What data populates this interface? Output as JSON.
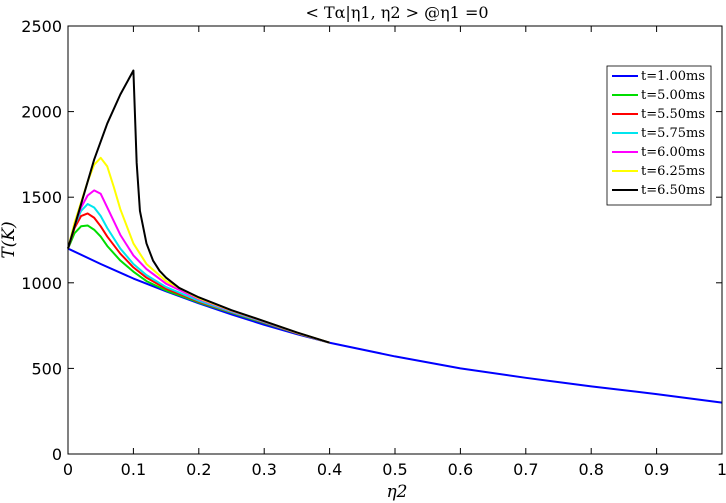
{
  "chart_data": {
    "type": "line",
    "title": "< Tα|η1, η2 > @η1 =0",
    "xlabel": "η2",
    "ylabel": "T(K)",
    "xlim": [
      0,
      1
    ],
    "ylim": [
      0,
      2500
    ],
    "xticks": [
      "0",
      "0.1",
      "0.2",
      "0.3",
      "0.4",
      "0.5",
      "0.6",
      "0.7",
      "0.8",
      "0.9",
      "1"
    ],
    "yticks": [
      "0",
      "500",
      "1000",
      "1500",
      "2000",
      "2500"
    ],
    "grid": false,
    "legend_position": "top-right",
    "series": [
      {
        "name": "t=1.00ms",
        "color": "#0000ff",
        "x": [
          0,
          0.05,
          0.1,
          0.15,
          0.2,
          0.25,
          0.3,
          0.35,
          0.4,
          0.5,
          0.6,
          0.7,
          0.8,
          0.9,
          1.0
        ],
        "y": [
          1200,
          1110,
          1025,
          950,
          880,
          815,
          755,
          700,
          650,
          570,
          500,
          445,
          395,
          350,
          300
        ]
      },
      {
        "name": "t=5.00ms",
        "color": "#00dd00",
        "x": [
          0,
          0.01,
          0.02,
          0.03,
          0.04,
          0.05,
          0.06,
          0.08,
          0.1,
          0.12,
          0.15,
          0.2,
          0.25,
          0.3,
          0.35,
          0.4
        ],
        "y": [
          1200,
          1290,
          1330,
          1335,
          1310,
          1270,
          1215,
          1130,
          1065,
          1010,
          955,
          885,
          825,
          765,
          705,
          650
        ]
      },
      {
        "name": "t=5.50ms",
        "color": "#ff0000",
        "x": [
          0,
          0.01,
          0.02,
          0.03,
          0.04,
          0.05,
          0.06,
          0.08,
          0.1,
          0.12,
          0.15,
          0.2,
          0.25,
          0.3,
          0.35,
          0.4
        ],
        "y": [
          1200,
          1320,
          1390,
          1405,
          1380,
          1330,
          1270,
          1170,
          1090,
          1030,
          965,
          890,
          828,
          768,
          706,
          650
        ]
      },
      {
        "name": "t=5.75ms",
        "color": "#00e5ee",
        "x": [
          0,
          0.01,
          0.02,
          0.03,
          0.04,
          0.05,
          0.06,
          0.08,
          0.1,
          0.12,
          0.15,
          0.2,
          0.25,
          0.3,
          0.35,
          0.4
        ],
        "y": [
          1200,
          1335,
          1420,
          1460,
          1440,
          1390,
          1320,
          1200,
          1110,
          1045,
          975,
          895,
          830,
          770,
          707,
          650
        ]
      },
      {
        "name": "t=6.00ms",
        "color": "#ff00ff",
        "x": [
          0,
          0.01,
          0.02,
          0.03,
          0.04,
          0.05,
          0.06,
          0.08,
          0.1,
          0.12,
          0.15,
          0.2,
          0.25,
          0.3,
          0.35,
          0.4
        ],
        "y": [
          1200,
          1340,
          1440,
          1510,
          1540,
          1520,
          1440,
          1280,
          1160,
          1080,
          995,
          905,
          835,
          773,
          708,
          650
        ]
      },
      {
        "name": "t=6.25ms",
        "color": "#ffff00",
        "x": [
          0,
          0.01,
          0.02,
          0.03,
          0.04,
          0.05,
          0.06,
          0.07,
          0.08,
          0.1,
          0.12,
          0.15,
          0.2,
          0.25,
          0.3,
          0.35,
          0.4
        ],
        "y": [
          1200,
          1350,
          1470,
          1590,
          1690,
          1730,
          1680,
          1560,
          1430,
          1230,
          1110,
          1010,
          910,
          838,
          775,
          709,
          650
        ]
      },
      {
        "name": "t=6.50ms",
        "color": "#000000",
        "x": [
          0,
          0.02,
          0.04,
          0.06,
          0.08,
          0.1,
          0.105,
          0.11,
          0.12,
          0.13,
          0.14,
          0.15,
          0.17,
          0.2,
          0.25,
          0.3,
          0.35,
          0.4
        ],
        "y": [
          1200,
          1460,
          1720,
          1930,
          2100,
          2240,
          1700,
          1420,
          1230,
          1130,
          1070,
          1030,
          970,
          915,
          840,
          776,
          710,
          650
        ]
      }
    ]
  }
}
